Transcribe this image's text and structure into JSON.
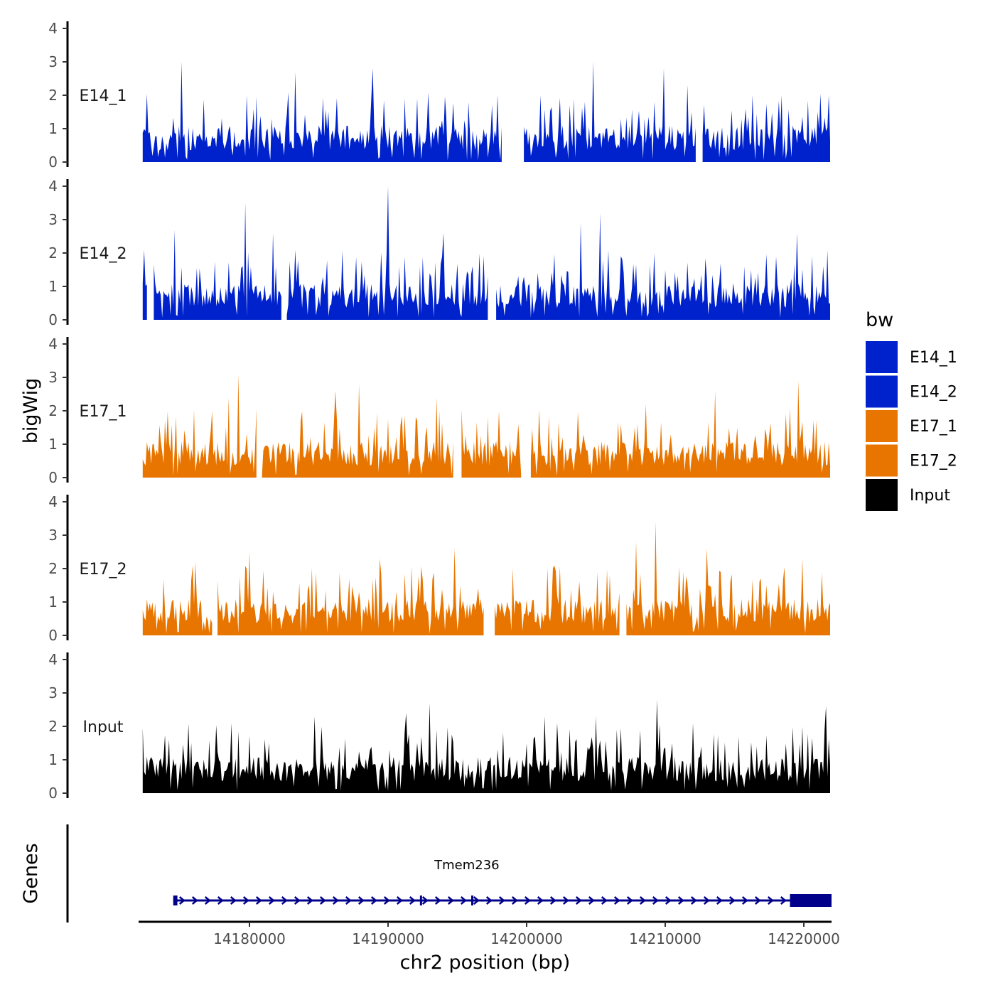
{
  "chart_data": {
    "type": "area",
    "ylabel": "bigWig",
    "xlabel": "chr2 position (bp)",
    "ylim": [
      0,
      4
    ],
    "yticks": [
      "0",
      "1",
      "2",
      "3",
      "4"
    ],
    "xlim": [
      14172000,
      14222000
    ],
    "xticks": [
      {
        "value": 14180000,
        "label": "14180000"
      },
      {
        "value": 14190000,
        "label": "14190000"
      },
      {
        "value": 14200000,
        "label": "14200000"
      },
      {
        "value": 14210000,
        "label": "14210000"
      },
      {
        "value": 14220000,
        "label": "14220000"
      }
    ],
    "legend": {
      "title": "bw",
      "entries": [
        {
          "label": "E14_1",
          "color": "#0022cc"
        },
        {
          "label": "E14_2",
          "color": "#0022cc"
        },
        {
          "label": "E17_1",
          "color": "#e87500"
        },
        {
          "label": "E17_2",
          "color": "#e87500"
        },
        {
          "label": "Input",
          "color": "#000000"
        }
      ]
    },
    "series": [
      {
        "name": "E14_1",
        "label": "E14_1",
        "color": "#0022cc",
        "peaks": [
          {
            "x": 14175100,
            "y": 3.0
          },
          {
            "x": 14179800,
            "y": 2.0
          },
          {
            "x": 14183300,
            "y": 2.7
          },
          {
            "x": 14188900,
            "y": 2.8
          },
          {
            "x": 14204800,
            "y": 3.0
          },
          {
            "x": 14209900,
            "y": 2.8
          },
          {
            "x": 14211600,
            "y": 2.3
          },
          {
            "x": 14218400,
            "y": 2.0
          },
          {
            "x": 14221800,
            "y": 2.0
          }
        ],
        "gaps": [
          [
            14198300,
            14199700
          ],
          [
            14212300,
            14212600
          ]
        ]
      },
      {
        "name": "E14_2",
        "label": "E14_2",
        "color": "#0022cc",
        "peaks": [
          {
            "x": 14174600,
            "y": 2.7
          },
          {
            "x": 14179700,
            "y": 3.5
          },
          {
            "x": 14181700,
            "y": 2.6
          },
          {
            "x": 14190000,
            "y": 4.0
          },
          {
            "x": 14194000,
            "y": 2.6
          },
          {
            "x": 14203900,
            "y": 2.9
          },
          {
            "x": 14205300,
            "y": 3.2
          },
          {
            "x": 14219500,
            "y": 2.6
          }
        ],
        "gaps": [
          [
            14172700,
            14173000
          ],
          [
            14182400,
            14182600
          ],
          [
            14197300,
            14197700
          ]
        ]
      },
      {
        "name": "E17_1",
        "label": "E17_1",
        "color": "#e87500",
        "peaks": [
          {
            "x": 14178500,
            "y": 2.4
          },
          {
            "x": 14179200,
            "y": 3.1
          },
          {
            "x": 14186200,
            "y": 2.6
          },
          {
            "x": 14187900,
            "y": 2.8
          },
          {
            "x": 14193500,
            "y": 2.4
          },
          {
            "x": 14208600,
            "y": 2.2
          },
          {
            "x": 14213600,
            "y": 2.6
          },
          {
            "x": 14219600,
            "y": 2.9
          }
        ],
        "gaps": [
          [
            14180600,
            14180800
          ],
          [
            14194800,
            14195200
          ],
          [
            14199700,
            14200200
          ]
        ]
      },
      {
        "name": "E17_2",
        "label": "E17_2",
        "color": "#e87500",
        "peaks": [
          {
            "x": 14176100,
            "y": 2.2
          },
          {
            "x": 14180000,
            "y": 2.5
          },
          {
            "x": 14189400,
            "y": 2.3
          },
          {
            "x": 14194800,
            "y": 2.6
          },
          {
            "x": 14207900,
            "y": 2.8
          },
          {
            "x": 14209300,
            "y": 3.4
          },
          {
            "x": 14213000,
            "y": 2.6
          },
          {
            "x": 14219900,
            "y": 2.3
          }
        ],
        "gaps": [
          [
            14177400,
            14177600
          ],
          [
            14197000,
            14197600
          ],
          [
            14206800,
            14207100
          ]
        ]
      },
      {
        "name": "Input",
        "label": "Input",
        "color": "#000000",
        "peaks": [
          {
            "x": 14184700,
            "y": 2.3
          },
          {
            "x": 14191300,
            "y": 2.4
          },
          {
            "x": 14193000,
            "y": 2.7
          },
          {
            "x": 14201300,
            "y": 2.3
          },
          {
            "x": 14205000,
            "y": 2.3
          },
          {
            "x": 14209400,
            "y": 2.8
          },
          {
            "x": 14221600,
            "y": 2.6
          }
        ],
        "gaps": []
      }
    ],
    "genes": {
      "track_label": "Genes",
      "items": [
        {
          "name": "Tmem236",
          "start": 14174500,
          "end": 14222000,
          "strand": "+",
          "color": "#00008b",
          "exons": [
            [
              14174500,
              14174800
            ],
            [
              14192300,
              14192400
            ],
            [
              14196000,
              14196100
            ],
            [
              14219000,
              14222000
            ]
          ]
        }
      ]
    }
  }
}
